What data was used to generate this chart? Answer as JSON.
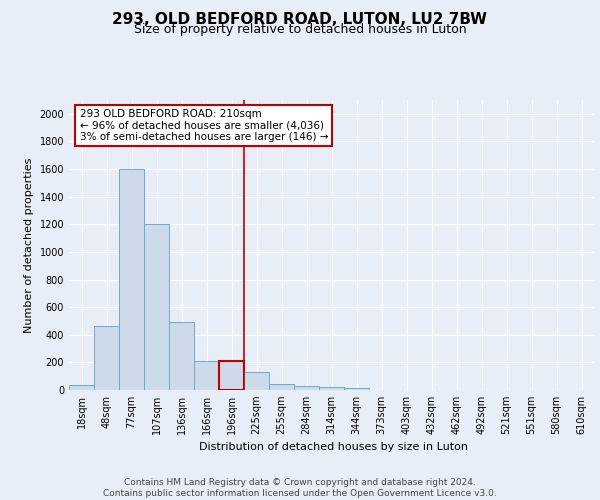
{
  "title_line1": "293, OLD BEDFORD ROAD, LUTON, LU2 7BW",
  "title_line2": "Size of property relative to detached houses in Luton",
  "xlabel": "Distribution of detached houses by size in Luton",
  "ylabel": "Number of detached properties",
  "bin_labels": [
    "18sqm",
    "48sqm",
    "77sqm",
    "107sqm",
    "136sqm",
    "166sqm",
    "196sqm",
    "225sqm",
    "255sqm",
    "284sqm",
    "314sqm",
    "344sqm",
    "373sqm",
    "403sqm",
    "432sqm",
    "462sqm",
    "492sqm",
    "521sqm",
    "551sqm",
    "580sqm",
    "610sqm"
  ],
  "bar_heights": [
    35,
    460,
    1600,
    1200,
    490,
    210,
    210,
    130,
    45,
    30,
    20,
    15,
    0,
    0,
    0,
    0,
    0,
    0,
    0,
    0,
    0
  ],
  "bar_color": "#cddaea",
  "bar_edge_color": "#6fa8d0",
  "highlight_bar_index": 6,
  "highlight_color": "#c00000",
  "property_line_x": 6.5,
  "annotation_text1": "293 OLD BEDFORD ROAD: 210sqm",
  "annotation_text2": "← 96% of detached houses are smaller (4,036)",
  "annotation_text3": "3% of semi-detached houses are larger (146) →",
  "ylim": [
    0,
    2100
  ],
  "yticks": [
    0,
    200,
    400,
    600,
    800,
    1000,
    1200,
    1400,
    1600,
    1800,
    2000
  ],
  "footer_line1": "Contains HM Land Registry data © Crown copyright and database right 2024.",
  "footer_line2": "Contains public sector information licensed under the Open Government Licence v3.0.",
  "background_color": "#e8eef8",
  "plot_bg_color": "#e8eef8",
  "grid_color": "#ffffff",
  "title1_fontsize": 11,
  "title2_fontsize": 9,
  "axis_label_fontsize": 8,
  "tick_fontsize": 7,
  "footer_fontsize": 6.5,
  "annot_fontsize": 7.5
}
